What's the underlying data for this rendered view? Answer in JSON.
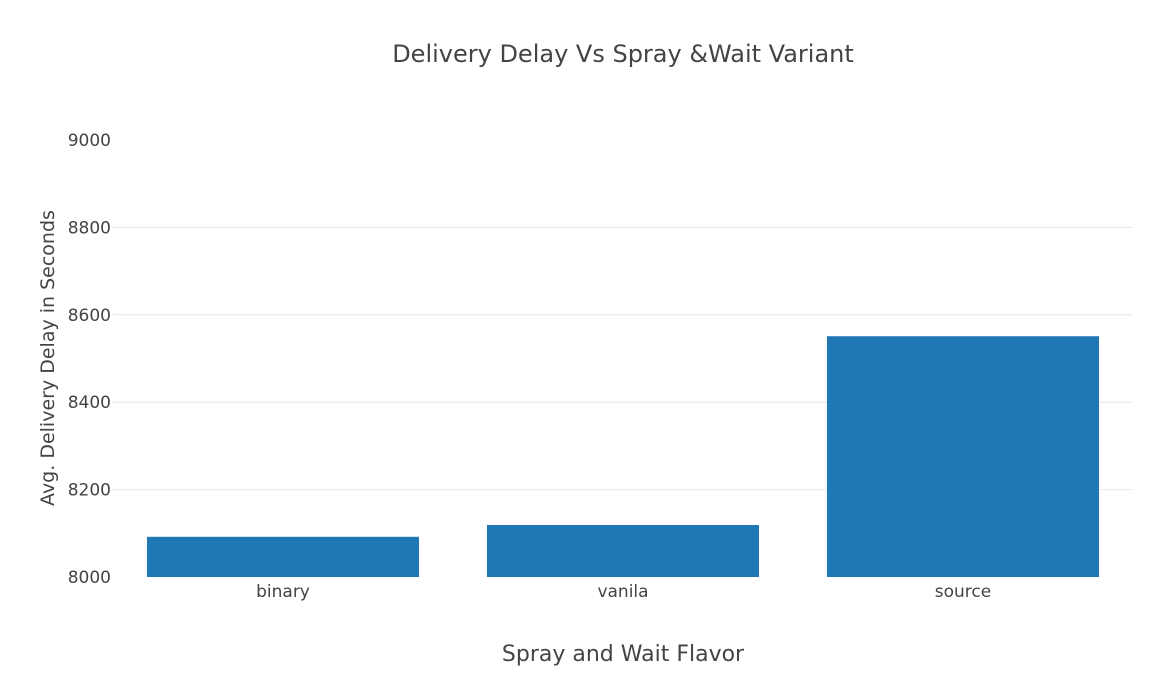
{
  "chart_data": {
    "type": "bar",
    "title": "Delivery Delay Vs Spray &Wait Variant",
    "xlabel": "Spray and Wait Flavor",
    "ylabel": "Avg. Delivery Delay in Seconds",
    "categories": [
      "binary",
      "vanila",
      "source"
    ],
    "values": [
      8092,
      8119,
      8551
    ],
    "ylim": [
      8000,
      9000
    ],
    "yticks": [
      8000,
      8200,
      8400,
      8600,
      8800,
      9000
    ],
    "bar_color": "#1f77b4",
    "gridlines": true,
    "legend": false
  }
}
